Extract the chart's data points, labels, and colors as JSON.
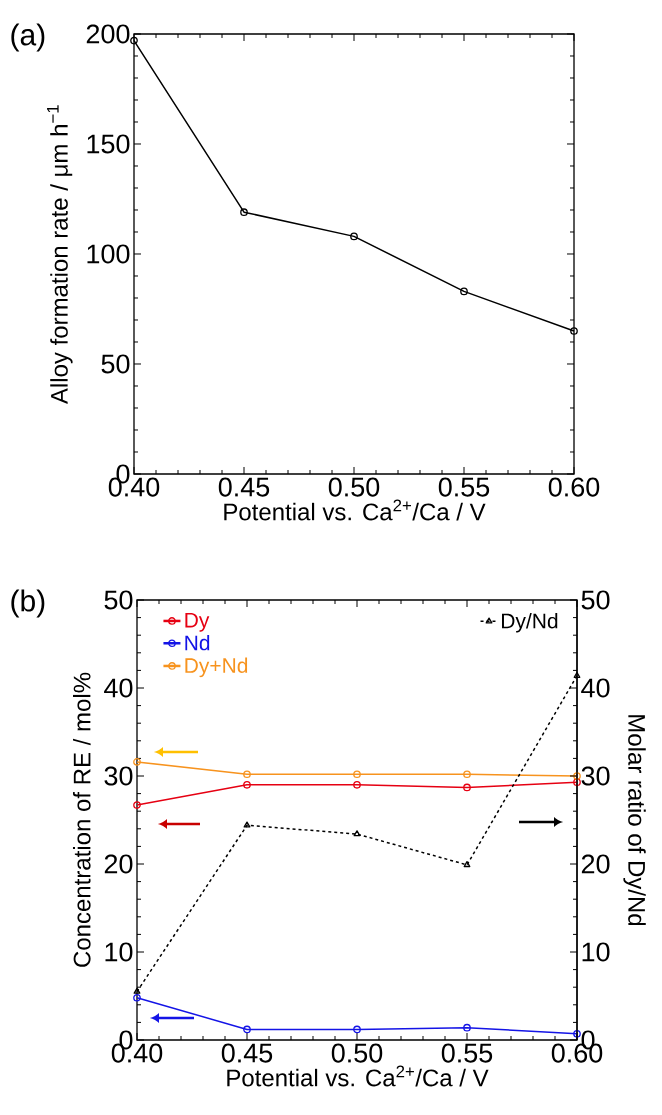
{
  "chart_data": [
    {
      "type": "line",
      "title": "(a)",
      "xlabel": "Potential vs. Ca$^{2+}$/Ca / V",
      "ylabel": "Alloy formation rate / μm h$^{−1}$",
      "x": [
        0.4,
        0.45,
        0.5,
        0.55,
        0.6
      ],
      "series": [
        {
          "color": "#000000",
          "values": [
            197,
            119,
            108,
            83,
            65
          ]
        }
      ],
      "xlim": [
        0.4,
        0.6
      ],
      "ylim": [
        0,
        200
      ],
      "xticks": [
        {
          "value": 0.4,
          "label": "0.40"
        },
        {
          "value": 0.45,
          "label": "0.45"
        },
        {
          "value": 0.5,
          "label": "0.50"
        },
        {
          "value": 0.55,
          "label": "0.55"
        },
        {
          "value": 0.6,
          "label": "0.60"
        }
      ],
      "yticks": [
        0,
        50,
        100,
        150,
        200
      ],
      "marker": "circle",
      "line_style": "solid",
      "legend": false
    },
    {
      "type": "line",
      "title": "(b)",
      "xlabel": "Potential vs. Ca$^{2+}$/Ca / V",
      "ylabel": "Concentration of RE / mol%",
      "y2label": "Molar ratio of Dy/Nd",
      "x": [
        0.4,
        0.45,
        0.5,
        0.55,
        0.6
      ],
      "series": [
        {
          "name": "Dy",
          "color": "#e60012",
          "values": [
            26.7,
            29.0,
            29.0,
            28.7,
            29.3
          ]
        },
        {
          "name": "Nd",
          "color": "#1414e6",
          "values": [
            4.8,
            1.2,
            1.2,
            1.4,
            0.7
          ]
        },
        {
          "name": "Dy+Nd",
          "color": "#f7931e",
          "values": [
            31.6,
            30.2,
            30.2,
            30.2,
            30.0
          ]
        },
        {
          "name": "Dy/Nd",
          "color": "#000000",
          "values": [
            5.5,
            24.4,
            23.4,
            19.9,
            41.4
          ],
          "axis": "y2",
          "marker": "triangle",
          "line_style": "dashed"
        }
      ],
      "xlim": [
        0.4,
        0.6
      ],
      "ylim": [
        0,
        50
      ],
      "y2lim": [
        0,
        50
      ],
      "xticks": [
        {
          "value": 0.4,
          "label": "0.40"
        },
        {
          "value": 0.45,
          "label": "0.45"
        },
        {
          "value": 0.5,
          "label": "0.50"
        },
        {
          "value": 0.55,
          "label": "0.55"
        },
        {
          "value": 0.6,
          "label": "0.60"
        }
      ],
      "yticks": [
        0,
        10,
        20,
        30,
        40,
        50
      ],
      "y2ticks": [
        0,
        10,
        20,
        30,
        40,
        50
      ],
      "marker": "circle",
      "line_style": "solid",
      "legend": "top left"
    }
  ]
}
